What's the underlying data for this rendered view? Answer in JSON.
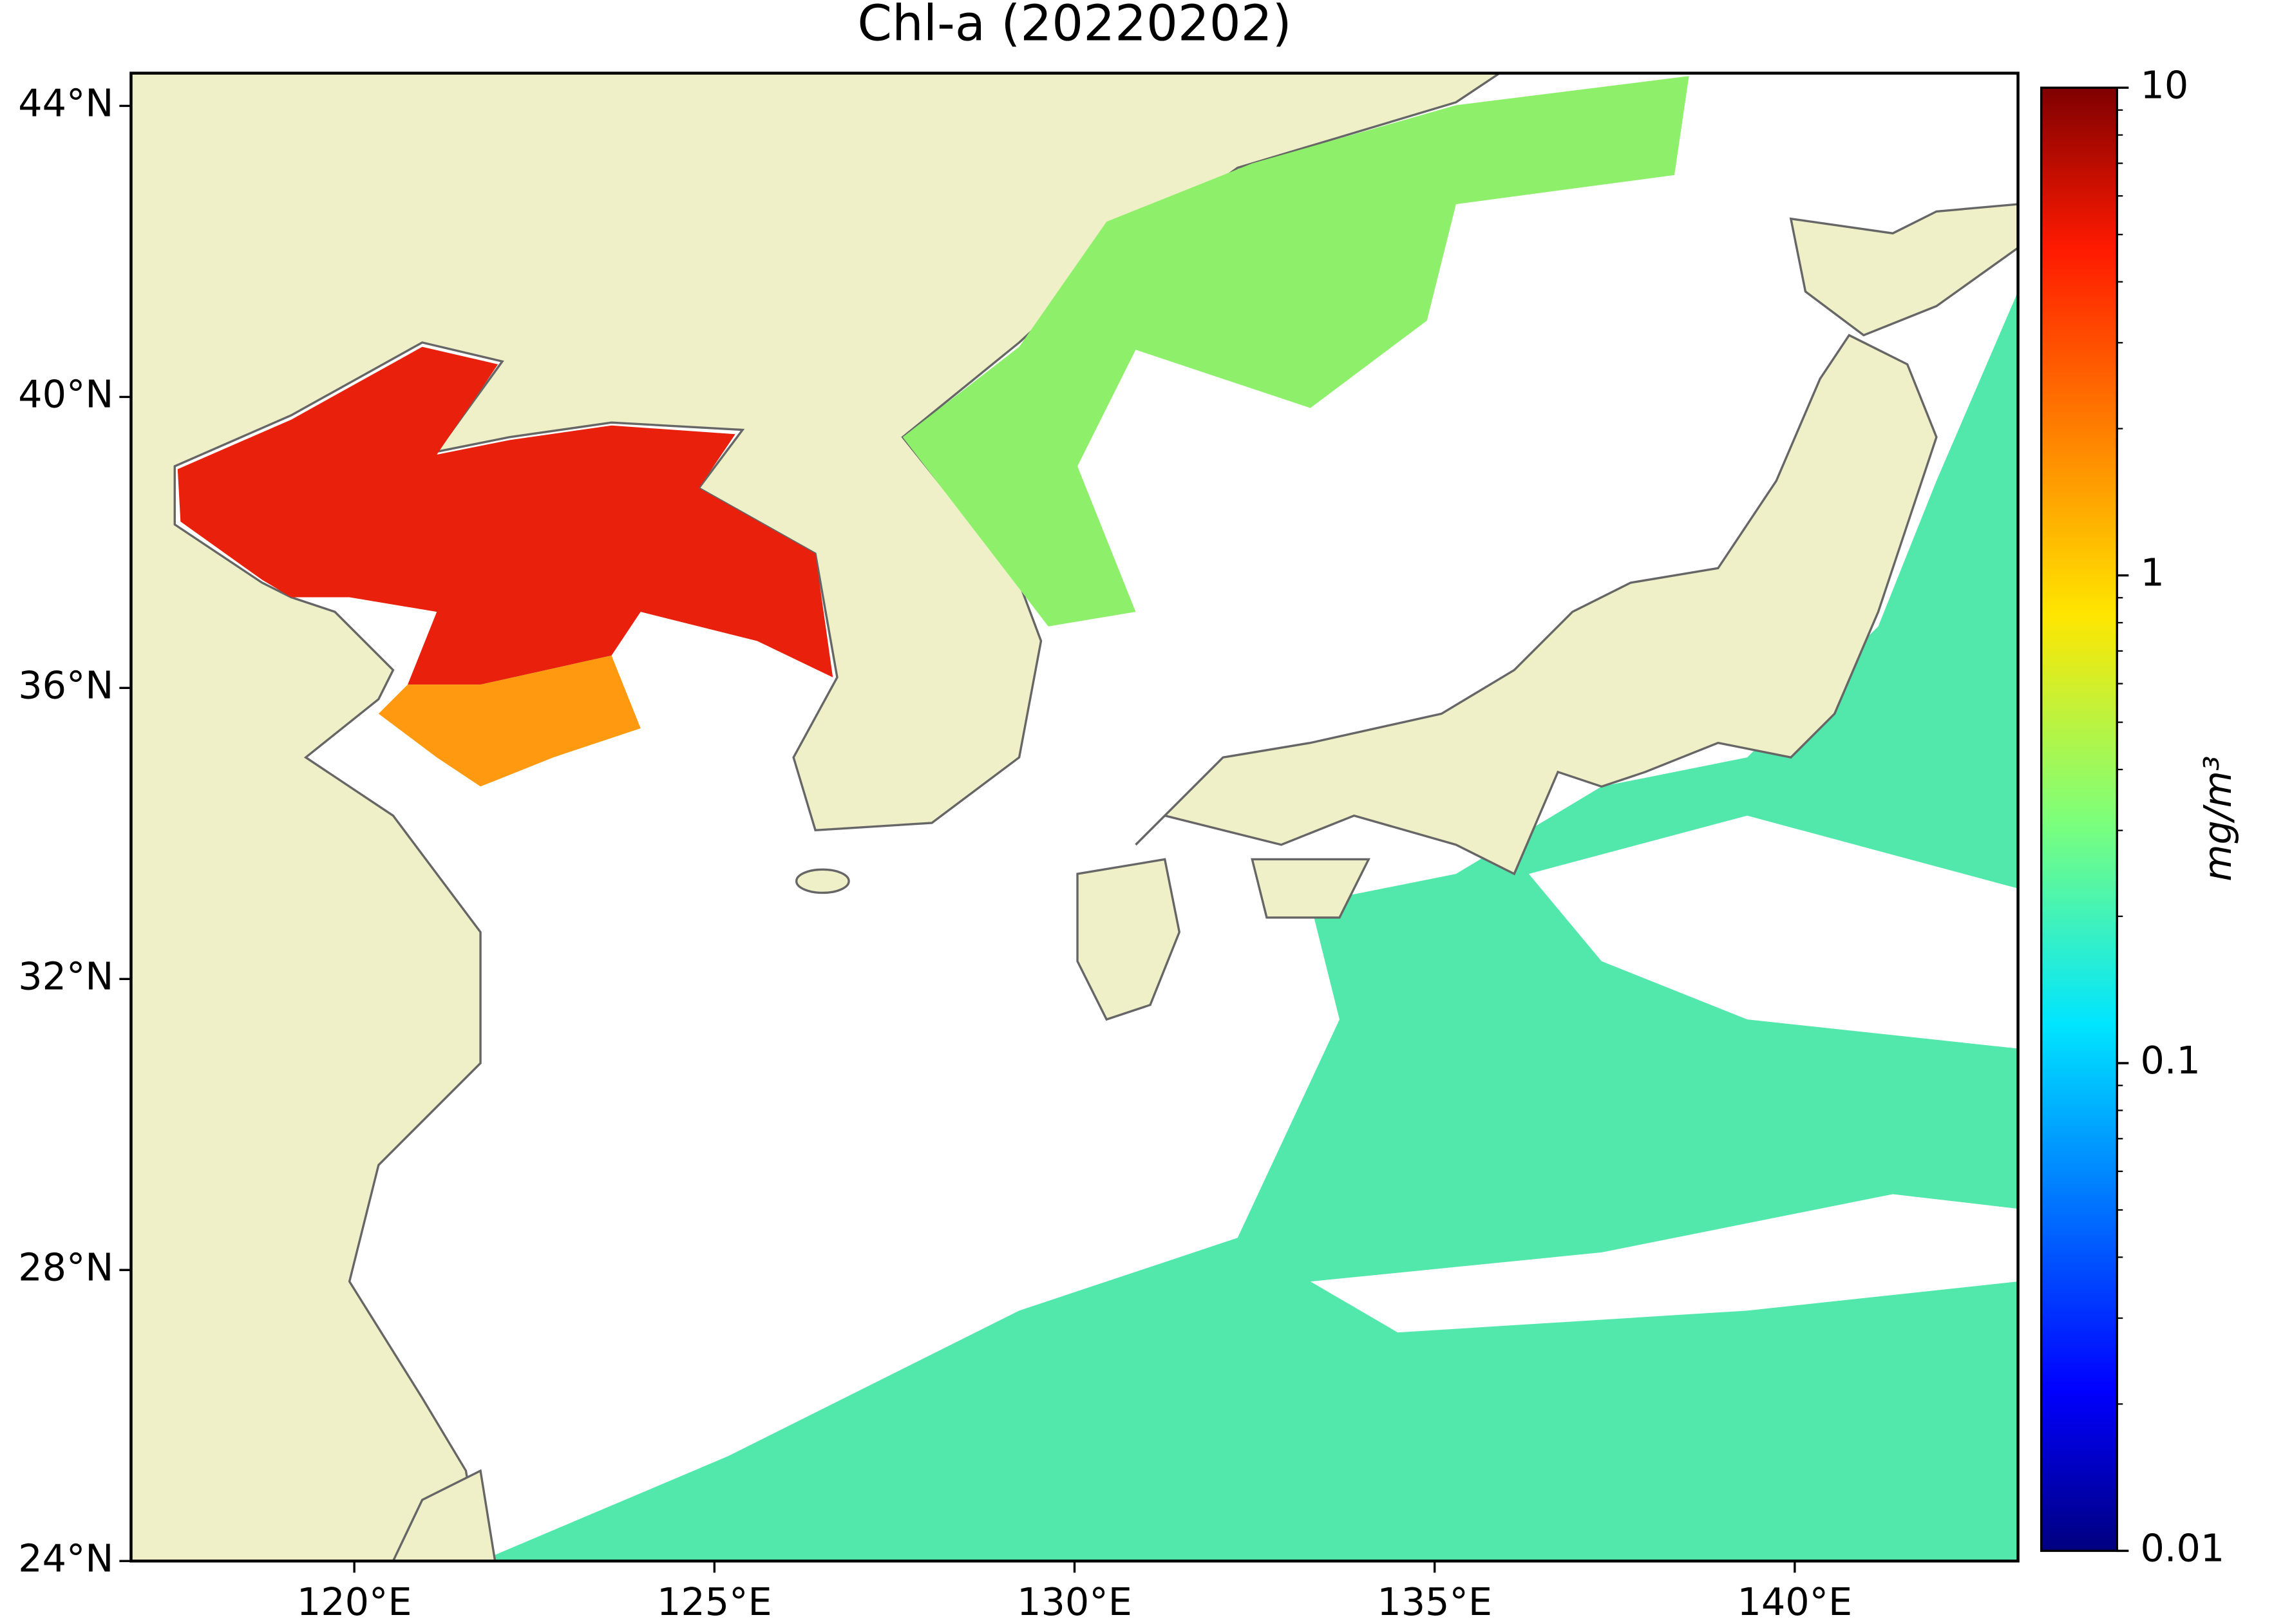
{
  "chart_data": {
    "type": "map",
    "title": "Chl-a (20220202)",
    "xlim": [
      116.9,
      143.1
    ],
    "ylim": [
      24,
      44.45
    ],
    "xticks": [
      {
        "value": 120,
        "label": "120°E"
      },
      {
        "value": 125,
        "label": "125°E"
      },
      {
        "value": 130,
        "label": "130°E"
      },
      {
        "value": 135,
        "label": "135°E"
      },
      {
        "value": 140,
        "label": "140°E"
      }
    ],
    "yticks": [
      {
        "value": 24,
        "label": "24°N"
      },
      {
        "value": 28,
        "label": "28°N"
      },
      {
        "value": 32,
        "label": "32°N"
      },
      {
        "value": 36,
        "label": "36°N"
      },
      {
        "value": 40,
        "label": "40°N"
      },
      {
        "value": 44,
        "label": "44°N"
      }
    ],
    "colorbar": {
      "label": "mg/m³",
      "clim": [
        0.01,
        10
      ],
      "log_scale": true,
      "ticks": [
        0.01,
        0.1,
        1,
        10
      ]
    }
  }
}
